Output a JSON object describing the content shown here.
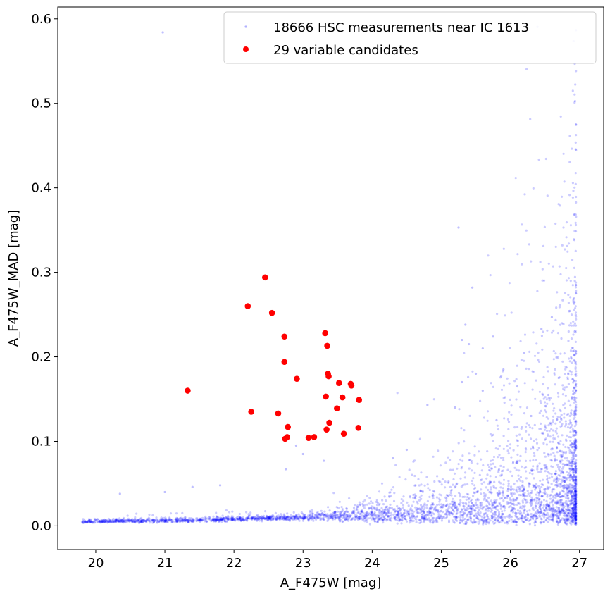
{
  "chart_data": {
    "type": "scatter",
    "xlabel": "A_F475W [mag]",
    "ylabel": "A_F475W_MAD [mag]",
    "xlim": [
      19.45,
      27.35
    ],
    "ylim": [
      -0.028,
      0.614
    ],
    "xticks": [
      20,
      21,
      22,
      23,
      24,
      25,
      26,
      27
    ],
    "yticks": [
      0.0,
      0.1,
      0.2,
      0.3,
      0.4,
      0.5,
      0.6
    ],
    "xtick_labels": [
      "20",
      "21",
      "22",
      "23",
      "24",
      "25",
      "26",
      "27"
    ],
    "ytick_labels": [
      "0.0",
      "0.1",
      "0.2",
      "0.3",
      "0.4",
      "0.5",
      "0.6"
    ],
    "grid": false,
    "legend_position": "top-right",
    "series": [
      {
        "name": "18666 HSC measurements near IC 1613",
        "color": "#0000ff",
        "marker": "small-dot-translucent",
        "count": 18666,
        "trend": {
          "x": [
            19.8,
            20.5,
            21.0,
            21.5,
            22.0,
            22.5,
            23.0,
            23.5,
            24.0,
            24.5,
            25.0,
            25.5,
            26.0,
            26.5,
            26.9
          ],
          "y": [
            0.005,
            0.006,
            0.006,
            0.007,
            0.008,
            0.009,
            0.01,
            0.012,
            0.013,
            0.015,
            0.018,
            0.022,
            0.03,
            0.042,
            0.055
          ]
        },
        "outliers": [
          {
            "x": 20.97,
            "y": 0.584
          },
          {
            "x": 25.25,
            "y": 0.353
          },
          {
            "x": 25.45,
            "y": 0.282
          },
          {
            "x": 26.6,
            "y": 0.247
          },
          {
            "x": 25.35,
            "y": 0.238
          },
          {
            "x": 26.45,
            "y": 0.233
          },
          {
            "x": 25.75,
            "y": 0.224
          },
          {
            "x": 25.3,
            "y": 0.22
          },
          {
            "x": 25.4,
            "y": 0.215
          },
          {
            "x": 25.6,
            "y": 0.21
          },
          {
            "x": 26.2,
            "y": 0.205
          },
          {
            "x": 25.9,
            "y": 0.185
          },
          {
            "x": 25.5,
            "y": 0.18
          },
          {
            "x": 26.7,
            "y": 0.175
          },
          {
            "x": 25.3,
            "y": 0.17
          },
          {
            "x": 26.1,
            "y": 0.165
          },
          {
            "x": 25.6,
            "y": 0.16
          },
          {
            "x": 26.55,
            "y": 0.155
          },
          {
            "x": 24.8,
            "y": 0.143
          },
          {
            "x": 25.2,
            "y": 0.14
          },
          {
            "x": 26.3,
            "y": 0.13
          },
          {
            "x": 25.8,
            "y": 0.125
          },
          {
            "x": 24.5,
            "y": 0.09
          },
          {
            "x": 22.9,
            "y": 0.095
          },
          {
            "x": 23.0,
            "y": 0.085
          },
          {
            "x": 23.3,
            "y": 0.077
          },
          {
            "x": 22.75,
            "y": 0.067
          },
          {
            "x": 24.3,
            "y": 0.08
          },
          {
            "x": 21.0,
            "y": 0.04
          },
          {
            "x": 20.35,
            "y": 0.038
          },
          {
            "x": 21.8,
            "y": 0.048
          },
          {
            "x": 21.4,
            "y": 0.046
          }
        ]
      },
      {
        "name": "29 variable candidates",
        "color": "#ff0000",
        "marker": "circle",
        "points": [
          {
            "x": 22.45,
            "y": 0.294
          },
          {
            "x": 22.2,
            "y": 0.26
          },
          {
            "x": 22.55,
            "y": 0.252
          },
          {
            "x": 23.32,
            "y": 0.228
          },
          {
            "x": 22.73,
            "y": 0.224
          },
          {
            "x": 23.35,
            "y": 0.213
          },
          {
            "x": 22.73,
            "y": 0.194
          },
          {
            "x": 23.36,
            "y": 0.18
          },
          {
            "x": 23.37,
            "y": 0.177
          },
          {
            "x": 22.91,
            "y": 0.174
          },
          {
            "x": 23.52,
            "y": 0.169
          },
          {
            "x": 23.69,
            "y": 0.168
          },
          {
            "x": 23.7,
            "y": 0.166
          },
          {
            "x": 21.33,
            "y": 0.16
          },
          {
            "x": 23.33,
            "y": 0.153
          },
          {
            "x": 23.57,
            "y": 0.152
          },
          {
            "x": 23.81,
            "y": 0.149
          },
          {
            "x": 23.49,
            "y": 0.139
          },
          {
            "x": 22.25,
            "y": 0.135
          },
          {
            "x": 22.64,
            "y": 0.133
          },
          {
            "x": 23.38,
            "y": 0.122
          },
          {
            "x": 22.78,
            "y": 0.117
          },
          {
            "x": 23.8,
            "y": 0.116
          },
          {
            "x": 23.34,
            "y": 0.114
          },
          {
            "x": 23.59,
            "y": 0.109
          },
          {
            "x": 22.77,
            "y": 0.105
          },
          {
            "x": 22.74,
            "y": 0.103
          },
          {
            "x": 23.08,
            "y": 0.104
          },
          {
            "x": 23.16,
            "y": 0.105
          }
        ]
      }
    ]
  }
}
